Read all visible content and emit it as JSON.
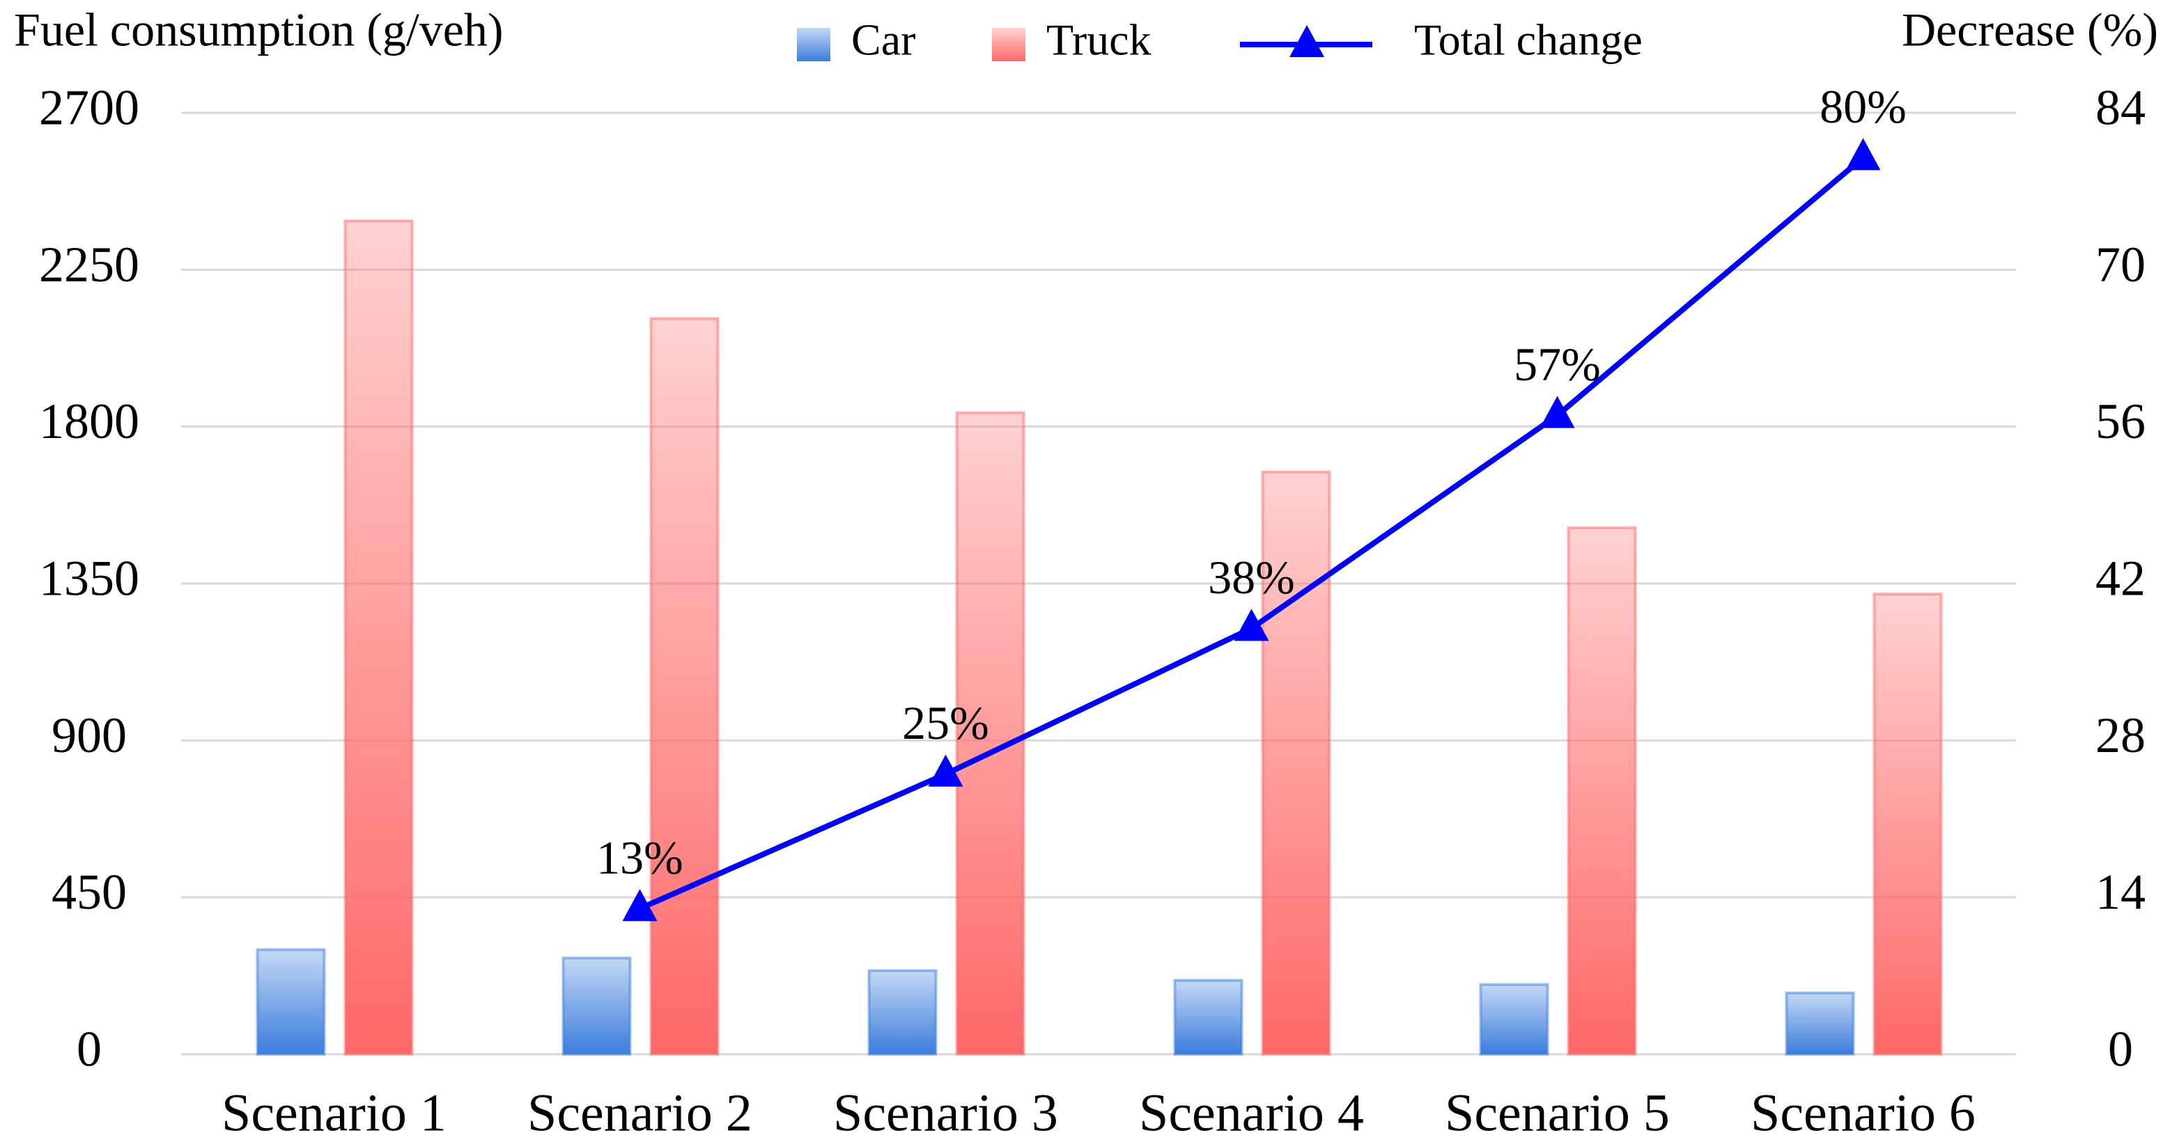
{
  "chart_data": {
    "type": "bar",
    "y_label": "Fuel consumption (g/veh)",
    "y2_label": "Decrease (%)",
    "categories": [
      "Scenario 1",
      "Scenario 2",
      "Scenario 3",
      "Scenario 4",
      "Scenario 5",
      "Scenario 6"
    ],
    "series": [
      {
        "name": "Car",
        "type": "bar",
        "color": "#3b7ddd",
        "values": [
          300,
          276,
          240,
          212,
          200,
          176
        ]
      },
      {
        "name": "Truck",
        "type": "bar",
        "color": "#ff6868",
        "values": [
          2390,
          2110,
          1840,
          1670,
          1510,
          1320
        ]
      },
      {
        "name": "Total change",
        "type": "line",
        "axis": "y2",
        "color": "#0000ff",
        "marker": "triangle",
        "values": [
          null,
          13,
          25,
          38,
          57,
          80
        ],
        "value_labels": [
          null,
          "13%",
          "25%",
          "38%",
          "57%",
          "80%"
        ]
      }
    ],
    "ylim": [
      0,
      2700
    ],
    "yticks": [
      0,
      450,
      900,
      1350,
      1800,
      2250,
      2700
    ],
    "y2lim": [
      0,
      84
    ],
    "y2ticks": [
      0,
      14,
      28,
      42,
      56,
      70,
      84
    ],
    "grid": true,
    "legend": "top"
  }
}
